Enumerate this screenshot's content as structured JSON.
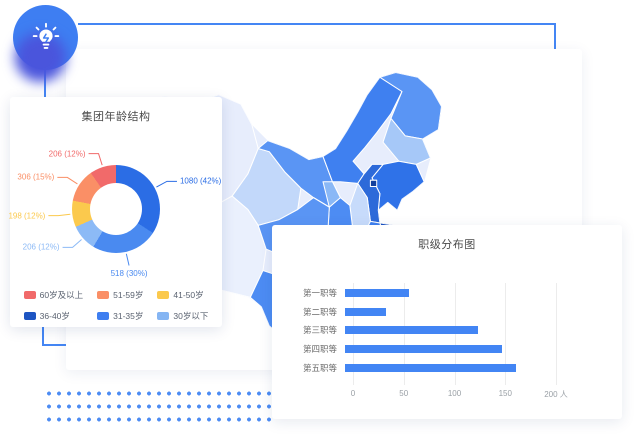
{
  "badge": {
    "icon": "lightbulb-icon",
    "color": "#3e7ef2",
    "shadow_color": "#4a55dc"
  },
  "accent": {
    "line_color": "#4486f4",
    "bar_color": "#4285f4"
  },
  "age_card": {
    "title": "集团年龄结构",
    "slices": [
      {
        "label": "36-40岁",
        "text": "1080 (42%)",
        "value": 1080,
        "color": "#2b6de5",
        "start": 0,
        "end": 123
      },
      {
        "label": "31-35岁",
        "text": "518 (30%)",
        "value": 518,
        "color": "#4a8af0",
        "start": 123,
        "end": 211
      },
      {
        "label": "30岁以下",
        "text": "206 (12%)",
        "value": 206,
        "color": "#8cbaf6",
        "start": 211,
        "end": 246
      },
      {
        "label": "41-50岁",
        "text": "198 (12%)",
        "value": 198,
        "color": "#fbc94d",
        "start": 246,
        "end": 281
      },
      {
        "label": "51-59岁",
        "text": "306 (15%)",
        "value": 306,
        "color": "#fa8f66",
        "start": 281,
        "end": 325
      },
      {
        "label": "60岁及以上",
        "text": "206 (12%)",
        "value": 206,
        "color": "#f16a6a",
        "start": 325,
        "end": 360
      }
    ],
    "legend": [
      {
        "label": "60岁及以上",
        "color": "#f16a6a"
      },
      {
        "label": "51-59岁",
        "color": "#fa8f66"
      },
      {
        "label": "41-50岁",
        "color": "#fbc94d"
      },
      {
        "label": "36-40岁",
        "color": "#1d55c2"
      },
      {
        "label": "31-35岁",
        "color": "#3e7ef0"
      },
      {
        "label": "30岁以下",
        "color": "#85b5f3"
      }
    ]
  },
  "rank_card": {
    "title": "职级分布图",
    "categories": [
      "第一职等",
      "第二职等",
      "第三职等",
      "第四职等",
      "第五职等"
    ],
    "values": [
      63,
      40,
      131,
      155,
      168
    ],
    "x_ticks": [
      "0",
      "50",
      "100",
      "150",
      "200 人"
    ],
    "x_max": 200
  },
  "map": {
    "region": "中国",
    "palette": [
      "#e7edfc",
      "#c2d8fa",
      "#a6c8f8",
      "#5a95f4",
      "#4d8cf3",
      "#3f80f0",
      "#2f72e8",
      "#2d6ad9",
      "#1b53c2",
      "#123f9e",
      "#eaf0fd",
      "#c7dbfb",
      "#8ab8f6"
    ]
  },
  "chart_data": [
    {
      "type": "pie",
      "donut": true,
      "title": "集团年龄结构",
      "labels": [
        "60岁及以上",
        "51-59岁",
        "41-50岁",
        "36-40岁",
        "31-35岁",
        "30岁以下"
      ],
      "values": [
        206,
        306,
        198,
        1080,
        518,
        206
      ],
      "display_labels": [
        "206 (12%)",
        "306 (15%)",
        "198 (12%)",
        "1080 (42%)",
        "518 (30%)",
        "206 (12%)"
      ],
      "colors": [
        "#f16a6a",
        "#fa8f66",
        "#fbc94d",
        "#2b6de5",
        "#4a8af0",
        "#8cbaf6"
      ],
      "legend_position": "bottom"
    },
    {
      "type": "bar",
      "orientation": "horizontal",
      "title": "职级分布图",
      "categories": [
        "第一职等",
        "第二职等",
        "第三职等",
        "第四职等",
        "第五职等"
      ],
      "values": [
        63,
        40,
        131,
        155,
        168
      ],
      "xlim": [
        0,
        200
      ],
      "x_ticks": [
        0,
        50,
        100,
        150,
        200
      ],
      "xlabel": "人",
      "grid": true,
      "bar_color": "#4285f4"
    },
    {
      "type": "map",
      "region": "中国",
      "style": "blue-choropleth",
      "note": "province shading from pale (west) to dark navy (east coast)"
    }
  ]
}
